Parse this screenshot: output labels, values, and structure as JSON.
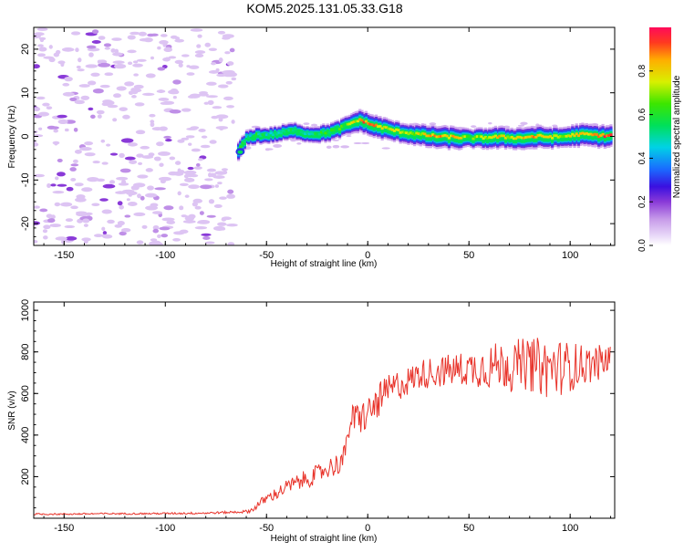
{
  "title": "KOM5.2025.131.05.33.G18",
  "chart_data": [
    {
      "type": "heatmap",
      "xlabel": "Height of straight line (km)",
      "ylabel": "Frequency (Hz)",
      "xlim": [
        -165,
        122
      ],
      "ylim": [
        -25,
        25
      ],
      "xticks": [
        -150,
        -100,
        -50,
        0,
        50,
        100
      ],
      "yticks": [
        -20,
        -10,
        0,
        10,
        20
      ],
      "colorbar": {
        "label": "Normalized spectral amplitude",
        "range": [
          0,
          1
        ],
        "ticks": [
          0.0,
          0.2,
          0.4,
          0.6,
          0.8
        ],
        "colors": [
          "#ffffff",
          "#d7b8f2",
          "#b36ae3",
          "#6a14c8",
          "#2a1ee6",
          "#1a7dff",
          "#00d6e0",
          "#00e04a",
          "#6be000",
          "#e6f000",
          "#ffa500",
          "#ff3b1f",
          "#ff0a5a"
        ]
      },
      "ridge": {
        "x": [
          -64,
          -60,
          -55,
          -50,
          -45,
          -40,
          -35,
          -30,
          -25,
          -20,
          -15,
          -10,
          -5,
          -2,
          0,
          3,
          6,
          10,
          15,
          20,
          25,
          30,
          35,
          40,
          45,
          50,
          55,
          60,
          65,
          70,
          75,
          80,
          85,
          90,
          95,
          100,
          105,
          110,
          115,
          120
        ],
        "y": [
          -3.5,
          -0.5,
          0.2,
          0.2,
          0.5,
          1.0,
          1.2,
          0.5,
          0.5,
          0.8,
          1.5,
          2.5,
          3.5,
          3.3,
          2.8,
          2.3,
          2.0,
          1.5,
          1.0,
          0.6,
          0.3,
          0.0,
          -0.2,
          -0.3,
          -0.4,
          -0.5,
          -0.5,
          -0.4,
          -0.3,
          -0.4,
          -0.5,
          -0.3,
          -0.2,
          -0.3,
          -0.3,
          0.0,
          0.3,
          0.2,
          0.0,
          0.0
        ],
        "amplitude": [
          0.65,
          0.45,
          0.55,
          0.5,
          0.5,
          0.55,
          0.55,
          0.5,
          0.55,
          0.6,
          0.6,
          0.65,
          0.8,
          0.9,
          0.85,
          0.85,
          0.8,
          0.75,
          0.7,
          0.7,
          0.75,
          0.8,
          0.85,
          0.8,
          0.8,
          0.6,
          0.7,
          0.75,
          0.8,
          0.7,
          0.8,
          0.85,
          0.8,
          0.75,
          0.7,
          0.75,
          0.85,
          0.8,
          0.9,
          0.95
        ]
      },
      "noise_region": {
        "x_from": -165,
        "x_to": -66,
        "y_from": -25,
        "y_to": 25,
        "amplitude_range": [
          0.1,
          0.35
        ]
      }
    },
    {
      "type": "line",
      "xlabel": "Height of straight line (km)",
      "ylabel": "SNR (v/v)",
      "xlim": [
        -165,
        122
      ],
      "ylim": [
        0,
        1040
      ],
      "xticks": [
        -150,
        -100,
        -50,
        0,
        50,
        100
      ],
      "yticks": [
        200,
        400,
        600,
        800,
        1000
      ],
      "color": "#e8332a",
      "series": [
        {
          "x": [
            -165,
            -150,
            -130,
            -110,
            -90,
            -80,
            -70,
            -65,
            -60,
            -57,
            -55,
            -50,
            -45,
            -40,
            -35,
            -30,
            -25,
            -20,
            -15,
            -11,
            -10,
            -9,
            -5,
            0,
            5,
            10,
            15,
            20,
            25,
            30,
            40,
            50,
            60,
            70,
            80,
            90,
            100,
            110,
            120
          ],
          "values": [
            20,
            20,
            22,
            22,
            24,
            25,
            28,
            30,
            32,
            40,
            60,
            95,
            120,
            150,
            170,
            190,
            210,
            240,
            260,
            300,
            420,
            460,
            480,
            500,
            560,
            610,
            640,
            660,
            690,
            700,
            710,
            720,
            730,
            740,
            740,
            720,
            730,
            740,
            760
          ],
          "noise_amplitude": [
            4,
            4,
            4,
            4,
            5,
            5,
            6,
            6,
            8,
            12,
            18,
            25,
            30,
            35,
            40,
            45,
            45,
            50,
            55,
            60,
            80,
            80,
            80,
            85,
            85,
            80,
            75,
            70,
            70,
            75,
            80,
            85,
            110,
            120,
            130,
            150,
            120,
            90,
            80
          ]
        }
      ]
    }
  ]
}
